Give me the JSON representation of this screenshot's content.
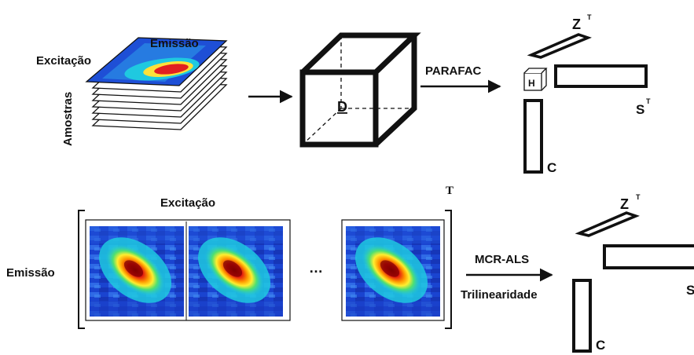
{
  "top": {
    "axis_excitation": "Excitação",
    "axis_emission": "Emissão",
    "axis_samples": "Amostras",
    "cube_label": "D",
    "method": "PARAFAC",
    "core_label": "H",
    "factor_z": "Z",
    "factor_s": "S",
    "factor_c": "C",
    "transpose": "T"
  },
  "bottom": {
    "excitation": "Excitação",
    "emission": "Emissão",
    "ellipsis": "…",
    "transpose": "T",
    "method": "MCR-ALS",
    "constraint": "Trilinearidade",
    "factor_z": "Z",
    "factor_s": "S",
    "factor_c": "C",
    "z_transpose": "T"
  },
  "colors": {
    "line": "#111111",
    "map_low": "#1a3fc8",
    "map_mid": "#1fc9e0",
    "map_high": "#c80a0a"
  }
}
